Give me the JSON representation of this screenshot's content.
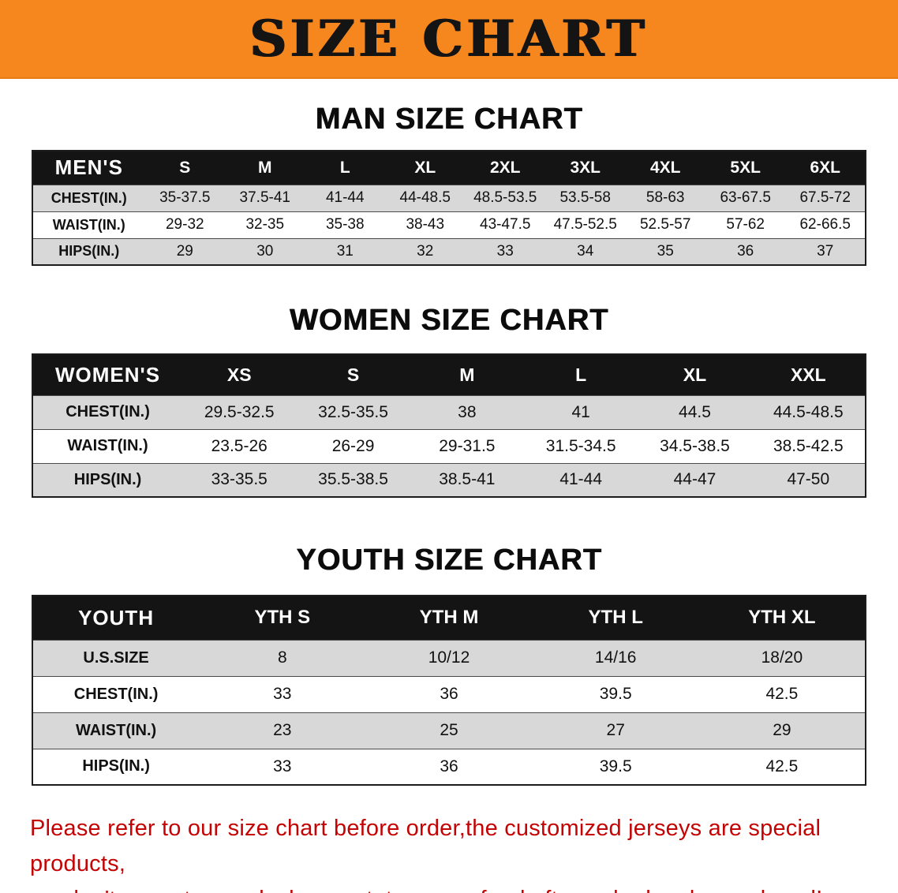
{
  "banner": {
    "title": "SIZE CHART"
  },
  "colors": {
    "banner-bg": "#F6871F",
    "banner-text": "#141414",
    "header-bg": "#141414",
    "header-text": "#FFFFFF",
    "row-shade": "#D8D8D8",
    "note-red": "#C40404"
  },
  "chart_data": [
    {
      "type": "table",
      "title": "MAN SIZE CHART",
      "header": [
        "MEN'S",
        "S",
        "M",
        "L",
        "XL",
        "2XL",
        "3XL",
        "4XL",
        "5XL",
        "6XL"
      ],
      "rows": [
        [
          "CHEST(IN.)",
          "35-37.5",
          "37.5-41",
          "41-44",
          "44-48.5",
          "48.5-53.5",
          "53.5-58",
          "58-63",
          "63-67.5",
          "67.5-72"
        ],
        [
          "WAIST(IN.)",
          "29-32",
          "32-35",
          "35-38",
          "38-43",
          "43-47.5",
          "47.5-52.5",
          "52.5-57",
          "57-62",
          "62-66.5"
        ],
        [
          "HIPS(IN.)",
          "29",
          "30",
          "31",
          "32",
          "33",
          "34",
          "35",
          "36",
          "37"
        ]
      ]
    },
    {
      "type": "table",
      "title": "WOMEN SIZE CHART",
      "header": [
        "WOMEN'S",
        "XS",
        "S",
        "M",
        "L",
        "XL",
        "XXL"
      ],
      "rows": [
        [
          "CHEST(IN.)",
          "29.5-32.5",
          "32.5-35.5",
          "38",
          "41",
          "44.5",
          "44.5-48.5"
        ],
        [
          "WAIST(IN.)",
          "23.5-26",
          "26-29",
          "29-31.5",
          "31.5-34.5",
          "34.5-38.5",
          "38.5-42.5"
        ],
        [
          "HIPS(IN.)",
          "33-35.5",
          "35.5-38.5",
          "38.5-41",
          "41-44",
          "44-47",
          "47-50"
        ]
      ]
    },
    {
      "type": "table",
      "title": "YOUTH SIZE CHART",
      "header": [
        "YOUTH",
        "YTH S",
        "YTH M",
        "YTH L",
        "YTH XL"
      ],
      "rows": [
        [
          "U.S.SIZE",
          "8",
          "10/12",
          "14/16",
          "18/20"
        ],
        [
          "CHEST(IN.)",
          "33",
          "36",
          "39.5",
          "42.5"
        ],
        [
          "WAIST(IN.)",
          "23",
          "25",
          "27",
          "29"
        ],
        [
          "HIPS(IN.)",
          "33",
          "36",
          "39.5",
          "42.5"
        ]
      ]
    }
  ],
  "footer": {
    "lines": [
      "Please refer to our size chart before order,the customized jerseys are special products,",
      "we don't accept cancel, change, teturn or refund after order has been placed!"
    ]
  }
}
